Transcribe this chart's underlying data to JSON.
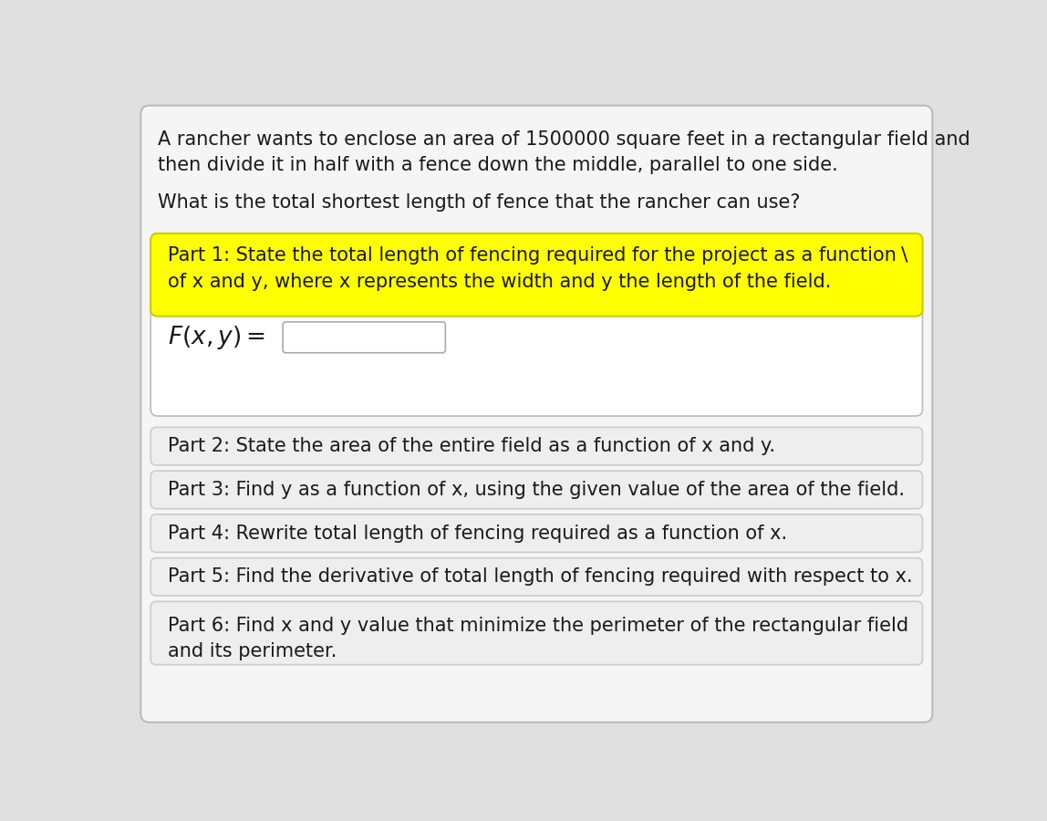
{
  "background_color": "#e0e0e0",
  "content_bg": "#f5f5f5",
  "intro_text_line1": "A rancher wants to enclose an area of 1500000 square feet in a rectangular field and",
  "intro_text_line2": "then divide it in half with a fence down the middle, parallel to one side.",
  "question_text": "What is the total shortest length of fence that the rancher can use?",
  "part1_text_line1": "Part 1: State the total length of fencing required for the project as a function",
  "part1_text_line2": "of x and y, where x represents the width and y the length of the field.",
  "part1_bg": "#ffff00",
  "part1_border": "#cccc00",
  "input_box_color": "#ffffff",
  "input_box_border": "#aaaaaa",
  "part2_text": "Part 2: State the area of the entire field as a function of x and y.",
  "part3_text": "Part 3: Find y as a function of x, using the given value of the area of the field.",
  "part4_text": "Part 4: Rewrite total length of fencing required as a function of x.",
  "part5_text": "Part 5: Find the derivative of total length of fencing required with respect to x.",
  "part6_text_line1": "Part 6: Find x and y value that minimize the perimeter of the rectangular field",
  "part6_text_line2": "and its perimeter.",
  "section_bg": "#eeeeee",
  "section_border": "#cccccc",
  "font_size": 15,
  "text_color": "#1a1a1a"
}
